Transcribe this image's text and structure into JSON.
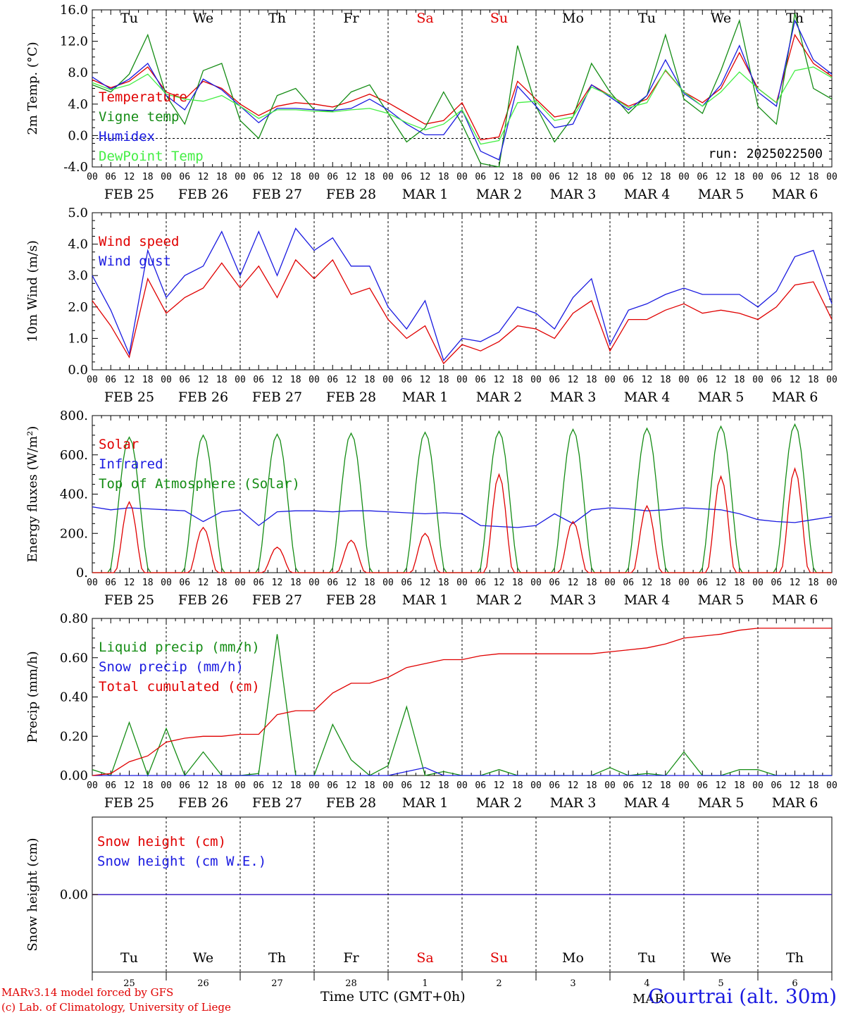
{
  "footer": {
    "credit_line1": "MARv3.14 model forced by GFS",
    "credit_line2": "(c) Lab. of Climatology, University of Liege",
    "x_axis_title": "Time UTC (GMT+0h)",
    "station": "Courtrai (alt. 30m)",
    "month_label": "MAR"
  },
  "colors": {
    "red": "#e00000",
    "green": "#148c14",
    "blue": "#1a1ae0",
    "light_green": "#44ee44",
    "black": "#000000"
  },
  "chart_data": [
    {
      "type": "line",
      "title": "",
      "ylabel": "2m Temp. (°C)",
      "ylim": [
        -4,
        18
      ],
      "yticks": [
        "-4.0",
        "0.0",
        "4.0",
        "8.0",
        "12.0",
        "16.0"
      ],
      "run_label": "run: 2025022500",
      "weekdays": [
        "Tu",
        "We",
        "Th",
        "Fr",
        "Sa",
        "Su",
        "Mo",
        "Tu",
        "We",
        "Th"
      ],
      "weekday_colors": [
        "black",
        "black",
        "black",
        "black",
        "red",
        "red",
        "black",
        "black",
        "black",
        "black"
      ],
      "hour_labels": [
        "00",
        "06",
        "12",
        "18"
      ],
      "date_labels": [
        "FEB 25",
        "FEB 26",
        "FEB 27",
        "FEB 28",
        "MAR  1",
        "MAR  2",
        "MAR  3",
        "MAR  4",
        "MAR  5",
        "MAR  6"
      ],
      "x_hours": [
        0,
        6,
        12,
        18,
        24,
        30,
        36,
        42,
        48,
        54,
        60,
        66,
        72,
        78,
        84,
        90,
        96,
        102,
        108,
        114,
        120,
        126,
        132,
        138,
        144,
        150,
        156,
        162,
        168,
        174,
        180,
        186,
        192,
        198,
        204,
        210,
        216,
        222,
        228,
        234,
        240
      ],
      "series": [
        {
          "name": "Temperature",
          "color": "red",
          "values": [
            8.2,
            7.1,
            8.0,
            10.0,
            6.5,
            5.5,
            8.0,
            7.0,
            4.8,
            3.2,
            4.5,
            5.0,
            4.8,
            4.4,
            5.2,
            6.2,
            5.0,
            3.5,
            2.0,
            2.5,
            5.0,
            -0.2,
            0.2,
            8.0,
            5.5,
            3.0,
            3.5,
            7.5,
            6.0,
            4.5,
            5.5,
            9.5,
            6.5,
            5.0,
            7.0,
            12.0,
            7.0,
            5.0,
            14.5,
            10.5,
            8.7
          ]
        },
        {
          "name": "Vigne temp",
          "color": "green",
          "values": [
            7.5,
            6.5,
            9.0,
            14.5,
            6.0,
            2.0,
            9.5,
            10.5,
            2.5,
            0.0,
            6.0,
            7.0,
            4.0,
            3.8,
            6.5,
            7.5,
            3.5,
            -0.5,
            1.5,
            6.5,
            2.0,
            -3.5,
            -4.0,
            13.0,
            4.5,
            -0.5,
            3.0,
            10.5,
            6.5,
            3.5,
            6.0,
            14.5,
            5.5,
            3.5,
            9.5,
            16.5,
            4.5,
            2.0,
            17.5,
            7.0,
            5.5
          ]
        },
        {
          "name": "Humidex",
          "color": "blue",
          "values": [
            8.6,
            6.9,
            8.3,
            10.5,
            6.0,
            4.0,
            8.3,
            6.8,
            4.5,
            2.2,
            4.2,
            4.2,
            4.0,
            3.9,
            4.2,
            5.5,
            4.0,
            2.0,
            0.5,
            0.5,
            4.0,
            -1.8,
            -3.0,
            7.3,
            4.5,
            1.5,
            2.0,
            7.5,
            5.8,
            4.0,
            6.0,
            11.0,
            6.3,
            4.5,
            7.5,
            13.0,
            6.5,
            4.5,
            16.5,
            11.0,
            9.0
          ]
        },
        {
          "name": "DewPoint Temp",
          "color": "light_green",
          "values": [
            7.8,
            6.8,
            7.5,
            9.0,
            6.2,
            5.5,
            5.2,
            6.0,
            4.5,
            2.8,
            4.0,
            4.0,
            3.8,
            3.7,
            4.0,
            4.2,
            3.5,
            2.2,
            1.2,
            2.0,
            4.0,
            -0.8,
            -0.3,
            5.0,
            5.2,
            2.5,
            3.0,
            7.2,
            6.0,
            4.3,
            5.0,
            9.6,
            6.5,
            4.5,
            6.5,
            9.3,
            7.0,
            5.0,
            9.5,
            10.0,
            8.5
          ]
        }
      ]
    },
    {
      "type": "line",
      "title": "",
      "ylabel": "10m Wind (m/s)",
      "ylim": [
        0,
        5
      ],
      "yticks": [
        "0.0",
        "1.0",
        "2.0",
        "3.0",
        "4.0",
        "5.0"
      ],
      "hour_labels": [
        "00",
        "06",
        "12",
        "18"
      ],
      "date_labels": [
        "FEB 25",
        "FEB 26",
        "FEB 27",
        "FEB 28",
        "MAR  1",
        "MAR  2",
        "MAR  3",
        "MAR  4",
        "MAR  5",
        "MAR  6"
      ],
      "x_hours": [
        0,
        6,
        12,
        18,
        24,
        30,
        36,
        42,
        48,
        54,
        60,
        66,
        72,
        78,
        84,
        90,
        96,
        102,
        108,
        114,
        120,
        126,
        132,
        138,
        144,
        150,
        156,
        162,
        168,
        174,
        180,
        186,
        192,
        198,
        204,
        210,
        216,
        222,
        228,
        234,
        240
      ],
      "series": [
        {
          "name": "Wind speed",
          "color": "red",
          "values": [
            2.2,
            1.4,
            0.4,
            2.9,
            1.8,
            2.3,
            2.6,
            3.4,
            2.6,
            3.3,
            2.3,
            3.5,
            2.9,
            3.5,
            2.4,
            2.6,
            1.6,
            1.0,
            1.4,
            0.2,
            0.8,
            0.6,
            0.9,
            1.4,
            1.3,
            1.0,
            1.8,
            2.2,
            0.6,
            1.6,
            1.6,
            1.9,
            2.1,
            1.8,
            1.9,
            1.8,
            1.6,
            2.0,
            2.7,
            2.8,
            1.6
          ]
        },
        {
          "name": "Wind gust",
          "color": "blue",
          "values": [
            3.0,
            1.9,
            0.5,
            3.8,
            2.3,
            3.0,
            3.3,
            4.4,
            3.0,
            4.4,
            3.0,
            4.5,
            3.8,
            4.2,
            3.3,
            3.3,
            2.0,
            1.3,
            2.2,
            0.3,
            1.0,
            0.9,
            1.2,
            2.0,
            1.8,
            1.3,
            2.3,
            2.9,
            0.8,
            1.9,
            2.1,
            2.4,
            2.6,
            2.4,
            2.4,
            2.4,
            2.0,
            2.5,
            3.6,
            3.8,
            2.1
          ]
        }
      ]
    },
    {
      "type": "line",
      "title": "",
      "ylabel": "Energy fluxes (W/m²)",
      "ylim": [
        0,
        800
      ],
      "yticks": [
        "0.",
        "200.",
        "400.",
        "600.",
        "800."
      ],
      "hour_labels": [
        "00",
        "06",
        "12",
        "18"
      ],
      "date_labels": [
        "FEB 25",
        "FEB 26",
        "FEB 27",
        "FEB 28",
        "MAR  1",
        "MAR  2",
        "MAR  3",
        "MAR  4",
        "MAR  5",
        "MAR  6"
      ],
      "x_hours": [
        0,
        6,
        12,
        18,
        24,
        30,
        36,
        42,
        48,
        54,
        60,
        66,
        72,
        78,
        84,
        90,
        96,
        102,
        108,
        114,
        120,
        126,
        132,
        138,
        144,
        150,
        156,
        162,
        168,
        174,
        180,
        186,
        192,
        198,
        204,
        210,
        216,
        222,
        228,
        234,
        240
      ],
      "series": [
        {
          "name": "Solar",
          "color": "red",
          "peaks": [
            360,
            230,
            130,
            165,
            200,
            500,
            260,
            340,
            490,
            530
          ]
        },
        {
          "name": "Infrared",
          "color": "blue",
          "values": [
            335,
            320,
            330,
            325,
            320,
            315,
            260,
            310,
            320,
            240,
            310,
            315,
            315,
            310,
            315,
            315,
            310,
            305,
            300,
            305,
            300,
            240,
            235,
            230,
            240,
            300,
            250,
            320,
            330,
            325,
            315,
            320,
            330,
            325,
            320,
            300,
            270,
            260,
            255,
            270,
            285
          ]
        },
        {
          "name": "Top of Atmosphere (Solar)",
          "color": "green",
          "peaks": [
            690,
            700,
            705,
            710,
            715,
            720,
            730,
            735,
            745,
            755
          ]
        }
      ]
    },
    {
      "type": "line",
      "title": "",
      "ylabel": "Precip (mm/h)",
      "ylim": [
        0,
        0.8
      ],
      "yticks": [
        "0.00",
        "0.20",
        "0.40",
        "0.60",
        "0.80"
      ],
      "hour_labels": [
        "00",
        "06",
        "12",
        "18"
      ],
      "date_labels": [
        "FEB 25",
        "FEB 26",
        "FEB 27",
        "FEB 28",
        "MAR  1",
        "MAR  2",
        "MAR  3",
        "MAR  4",
        "MAR  5",
        "MAR  6"
      ],
      "x_hours": [
        0,
        6,
        12,
        18,
        24,
        30,
        36,
        42,
        48,
        54,
        60,
        66,
        72,
        78,
        84,
        90,
        96,
        102,
        108,
        114,
        120,
        126,
        132,
        138,
        144,
        150,
        156,
        162,
        168,
        174,
        180,
        186,
        192,
        198,
        204,
        210,
        216,
        222,
        228,
        234,
        240
      ],
      "series": [
        {
          "name": "Liquid precip (mm/h)",
          "color": "green",
          "values": [
            0.03,
            0.0,
            0.27,
            0.0,
            0.24,
            0.0,
            0.12,
            0.0,
            0.0,
            0.01,
            0.72,
            0.0,
            0.0,
            0.26,
            0.08,
            0.0,
            0.05,
            0.35,
            0.0,
            0.02,
            0.0,
            0.0,
            0.03,
            0.0,
            0.0,
            0.0,
            0.0,
            0.0,
            0.04,
            0.0,
            0.01,
            0.0,
            0.12,
            0.0,
            0.0,
            0.03,
            0.03,
            0.0,
            0.0,
            0.0,
            0.0
          ]
        },
        {
          "name": "Snow precip (mm/h)",
          "color": "blue",
          "values": [
            0.0,
            0.0,
            0.0,
            0.0,
            0.0,
            0.0,
            0.0,
            0.0,
            0.0,
            0.0,
            0.0,
            0.0,
            0.0,
            0.0,
            0.0,
            0.0,
            0.0,
            0.02,
            0.04,
            0.0,
            0.0,
            0.0,
            0.0,
            0.0,
            0.0,
            0.0,
            0.0,
            0.0,
            0.0,
            0.0,
            0.0,
            0.0,
            0.0,
            0.0,
            0.0,
            0.0,
            0.0,
            0.0,
            0.0,
            0.0,
            0.0
          ]
        },
        {
          "name": "Total cumulated (cm)",
          "color": "red",
          "values": [
            0.0,
            0.01,
            0.07,
            0.1,
            0.17,
            0.19,
            0.2,
            0.2,
            0.21,
            0.21,
            0.31,
            0.33,
            0.33,
            0.42,
            0.47,
            0.47,
            0.5,
            0.55,
            0.57,
            0.59,
            0.59,
            0.61,
            0.62,
            0.62,
            0.62,
            0.62,
            0.62,
            0.62,
            0.63,
            0.64,
            0.65,
            0.67,
            0.7,
            0.71,
            0.72,
            0.74,
            0.75,
            0.75,
            0.75,
            0.75,
            0.75
          ]
        }
      ]
    },
    {
      "type": "line",
      "title": "",
      "ylabel": "Snow height (cm)",
      "yticks": [
        "0.00"
      ],
      "weekdays": [
        "Tu",
        "We",
        "Th",
        "Fr",
        "Sa",
        "Su",
        "Mo",
        "Tu",
        "We",
        "Th"
      ],
      "weekday_colors": [
        "black",
        "black",
        "black",
        "black",
        "red",
        "red",
        "black",
        "black",
        "black",
        "black"
      ],
      "day_numbers": [
        "25",
        "26",
        "27",
        "28",
        "1",
        "2",
        "3",
        "4",
        "5",
        "6"
      ],
      "series": [
        {
          "name": "Snow height (cm)",
          "color": "red",
          "values": [
            0,
            0
          ]
        },
        {
          "name": "Snow height (cm W.E.)",
          "color": "blue",
          "values": [
            0,
            0
          ]
        }
      ]
    }
  ]
}
